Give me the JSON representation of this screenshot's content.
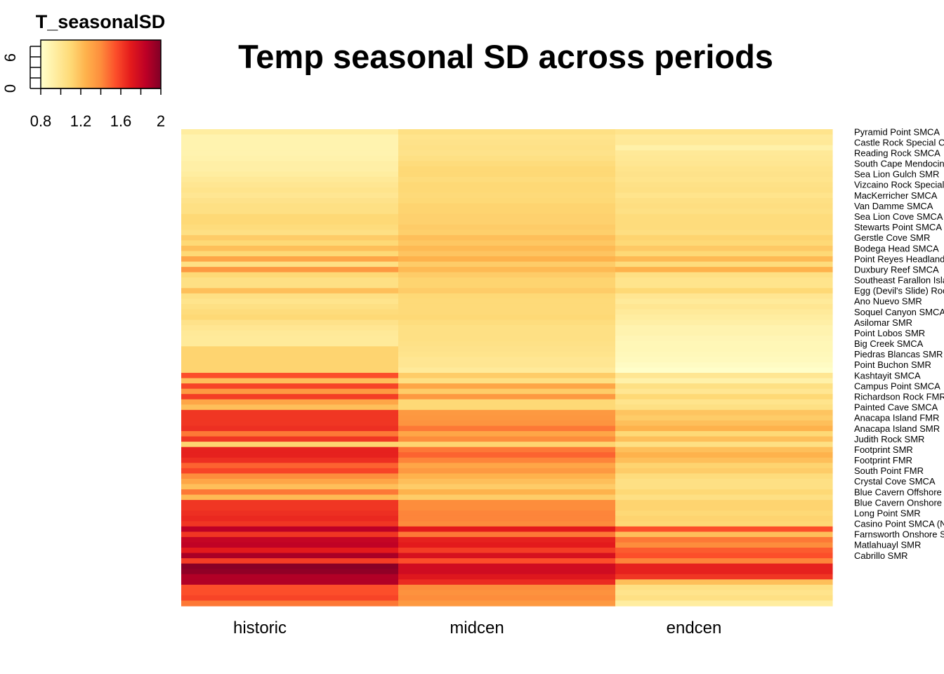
{
  "chart_data": {
    "type": "heatmap",
    "title": "Temp seasonal SD across periods",
    "legend": {
      "title": "T_seasonalSD",
      "range": [
        0.8,
        2.0
      ],
      "ticks": [
        "0.8",
        "1.2",
        "1.6",
        "2"
      ],
      "hist_axis_ticks": [
        "0",
        "6"
      ],
      "placement": "top-left",
      "colors": [
        "#FFFFCC",
        "#FFEDA0",
        "#FED976",
        "#FEB24C",
        "#FD8D3C",
        "#FC4E2A",
        "#E31A1C",
        "#BD0026",
        "#800026"
      ]
    },
    "columns": [
      "historic",
      "midcen",
      "endcen"
    ],
    "rows": [
      "Pyramid Point SMCA",
      "",
      "Castle Rock Special Closure",
      "",
      "Reading Rock SMCA",
      "",
      "South Cape Mendocino SMR",
      "",
      "Sea Lion Gulch SMR",
      "",
      "Vizcaino Rock Special Closure",
      "",
      "MacKerricher SMCA",
      "",
      "Van Damme SMCA",
      "",
      "Sea Lion Cove SMCA",
      "",
      "Stewarts Point SMCA",
      "",
      "Gerstle Cove SMR",
      "",
      "Bodega Head SMCA",
      "",
      "Point Reyes Headlands Special Closure",
      "",
      "Duxbury Reef SMCA",
      "",
      "Southeast Farallon Island SMR",
      "",
      "Egg (Devil's Slide) Rock to Devil's Slide Special Closure",
      "",
      "Ano Nuevo SMR",
      "",
      "Soquel Canyon SMCA",
      "",
      "Asilomar SMR",
      "",
      "Point Lobos SMR",
      "",
      "Big Creek SMCA",
      "",
      "Piedras Blancas SMR",
      "",
      "Point Buchon SMR",
      "",
      "Kashtayit SMCA",
      "",
      "Campus Point SMCA",
      "",
      "Richardson Rock FMR",
      "",
      "Painted Cave SMCA",
      "",
      "Anacapa Island FMR",
      "",
      "Anacapa Island SMR",
      "",
      "Judith Rock SMR",
      "",
      "Footprint SMR",
      "",
      "Footprint FMR",
      "",
      "South Point FMR",
      "",
      "Crystal Cove SMCA",
      "",
      "Blue Cavern Offshore SMCA",
      "",
      "Blue Cavern Onshore SMCA",
      "",
      "Long Point SMR",
      "",
      "Casino Point SMCA (No-Take)",
      "",
      "Farnsworth Onshore SMCA",
      "",
      "Matlahuayl SMR",
      "",
      "Cabrillo SMR"
    ],
    "values": [
      [
        0.95,
        1.05,
        1.02
      ],
      [
        0.9,
        1.02,
        0.97
      ],
      [
        0.9,
        1.03,
        0.98
      ],
      [
        0.9,
        1.04,
        0.92
      ],
      [
        0.9,
        1.03,
        0.98
      ],
      [
        0.91,
        1.05,
        0.99
      ],
      [
        0.93,
        1.08,
        1.0
      ],
      [
        0.93,
        1.1,
        1.02
      ],
      [
        0.95,
        1.1,
        1.03
      ],
      [
        0.98,
        1.08,
        1.02
      ],
      [
        1.0,
        1.1,
        1.04
      ],
      [
        1.02,
        1.1,
        1.05
      ],
      [
        1.0,
        1.09,
        1.02
      ],
      [
        1.03,
        1.1,
        1.05
      ],
      [
        1.05,
        1.12,
        1.06
      ],
      [
        1.05,
        1.12,
        1.05
      ],
      [
        1.1,
        1.13,
        1.08
      ],
      [
        1.1,
        1.13,
        1.08
      ],
      [
        1.08,
        1.15,
        1.08
      ],
      [
        1.05,
        1.14,
        1.06
      ],
      [
        1.15,
        1.2,
        1.12
      ],
      [
        1.1,
        1.17,
        1.1
      ],
      [
        1.2,
        1.22,
        1.16
      ],
      [
        1.1,
        1.18,
        1.1
      ],
      [
        1.3,
        1.25,
        1.22
      ],
      [
        1.05,
        1.15,
        1.08
      ],
      [
        1.35,
        1.22,
        1.25
      ],
      [
        1.1,
        1.15,
        1.05
      ],
      [
        1.05,
        1.12,
        1.02
      ],
      [
        1.05,
        1.12,
        1.02
      ],
      [
        1.2,
        1.15,
        1.1
      ],
      [
        1.05,
        1.1,
        1.0
      ],
      [
        1.02,
        1.09,
        0.97
      ],
      [
        1.05,
        1.09,
        1.0
      ],
      [
        1.08,
        1.09,
        0.97
      ],
      [
        1.1,
        1.1,
        0.95
      ],
      [
        1.03,
        1.07,
        0.93
      ],
      [
        1.0,
        1.05,
        0.9
      ],
      [
        0.98,
        1.05,
        0.9
      ],
      [
        0.97,
        1.05,
        0.88
      ],
      [
        0.97,
        1.04,
        0.87
      ],
      [
        1.12,
        1.03,
        0.87
      ],
      [
        1.12,
        1.02,
        0.86
      ],
      [
        1.12,
        1.0,
        0.85
      ],
      [
        1.12,
        1.0,
        0.83
      ],
      [
        1.12,
        0.97,
        0.81
      ],
      [
        1.55,
        1.15,
        1.0
      ],
      [
        1.2,
        1.05,
        0.92
      ],
      [
        1.58,
        1.3,
        1.05
      ],
      [
        1.35,
        1.15,
        1.0
      ],
      [
        1.6,
        1.35,
        1.1
      ],
      [
        1.3,
        1.1,
        1.02
      ],
      [
        1.2,
        1.1,
        1.05
      ],
      [
        1.62,
        1.35,
        1.18
      ],
      [
        1.62,
        1.36,
        1.15
      ],
      [
        1.62,
        1.37,
        1.2
      ],
      [
        1.64,
        1.45,
        1.25
      ],
      [
        1.45,
        1.3,
        1.1
      ],
      [
        1.62,
        1.4,
        1.2
      ],
      [
        1.12,
        1.12,
        1.05
      ],
      [
        1.68,
        1.45,
        1.2
      ],
      [
        1.68,
        1.5,
        1.25
      ],
      [
        1.64,
        1.42,
        1.2
      ],
      [
        1.5,
        1.3,
        1.12
      ],
      [
        1.58,
        1.35,
        1.15
      ],
      [
        1.4,
        1.25,
        1.08
      ],
      [
        1.3,
        1.2,
        1.05
      ],
      [
        1.2,
        1.15,
        1.05
      ],
      [
        1.45,
        1.25,
        1.1
      ],
      [
        1.22,
        1.15,
        1.05
      ],
      [
        1.62,
        1.4,
        1.12
      ],
      [
        1.62,
        1.4,
        1.12
      ],
      [
        1.64,
        1.42,
        1.1
      ],
      [
        1.66,
        1.42,
        1.12
      ],
      [
        1.62,
        1.4,
        1.1
      ],
      [
        1.85,
        1.7,
        1.55
      ],
      [
        1.62,
        1.45,
        1.2
      ],
      [
        1.82,
        1.68,
        1.45
      ],
      [
        1.84,
        1.7,
        1.4
      ],
      [
        1.7,
        1.6,
        1.52
      ],
      [
        1.9,
        1.75,
        1.55
      ],
      [
        1.6,
        1.55,
        1.42
      ],
      [
        1.98,
        1.78,
        1.68
      ],
      [
        1.96,
        1.78,
        1.68
      ],
      [
        1.88,
        1.72,
        1.62
      ],
      [
        1.88,
        1.65,
        1.2
      ],
      [
        1.55,
        1.4,
        1.05
      ],
      [
        1.55,
        1.38,
        1.02
      ],
      [
        1.58,
        1.4,
        1.05
      ],
      [
        1.45,
        1.35,
        0.95
      ]
    ]
  }
}
